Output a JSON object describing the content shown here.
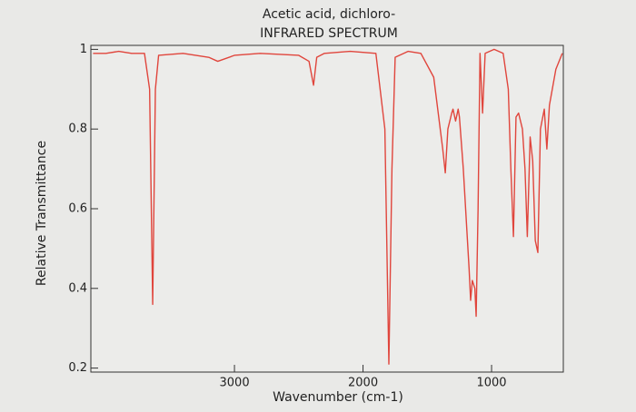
{
  "chart_data": {
    "type": "line",
    "title": "Acetic acid, dichloro-",
    "subtitle": "INFRARED SPECTRUM",
    "x_label": "Wavenumber (cm-1)",
    "y_label": "Relative Transmittance",
    "xlim": [
      4117,
      442
    ],
    "ylim": [
      0.19,
      1.01
    ],
    "xticks": [
      3000,
      2000,
      1000
    ],
    "yticks": [
      0.2,
      0.4,
      0.6,
      0.8,
      1
    ],
    "x": [
      4100,
      4000,
      3900,
      3800,
      3700,
      3660,
      3636,
      3615,
      3590,
      3400,
      3200,
      3130,
      3000,
      2800,
      2500,
      2420,
      2385,
      2360,
      2300,
      2100,
      1900,
      1830,
      1799,
      1775,
      1750,
      1650,
      1550,
      1450,
      1380,
      1360,
      1340,
      1310,
      1300,
      1280,
      1260,
      1250,
      1220,
      1175,
      1163,
      1150,
      1130,
      1120,
      1105,
      1090,
      1070,
      1050,
      980,
      910,
      870,
      850,
      830,
      810,
      790,
      760,
      740,
      722,
      700,
      680,
      660,
      640,
      620,
      590,
      570,
      550,
      500,
      450
    ],
    "series": [
      {
        "name": "Acetic acid, dichloro-",
        "color": "#e0453c",
        "values": [
          0.99,
          0.99,
          0.995,
          0.99,
          0.99,
          0.9,
          0.36,
          0.9,
          0.985,
          0.99,
          0.98,
          0.97,
          0.985,
          0.99,
          0.985,
          0.97,
          0.91,
          0.98,
          0.99,
          0.995,
          0.99,
          0.8,
          0.21,
          0.7,
          0.98,
          0.995,
          0.99,
          0.93,
          0.75,
          0.69,
          0.8,
          0.84,
          0.85,
          0.82,
          0.85,
          0.83,
          0.7,
          0.45,
          0.37,
          0.42,
          0.4,
          0.33,
          0.6,
          0.99,
          0.84,
          0.99,
          1.0,
          0.99,
          0.9,
          0.7,
          0.53,
          0.83,
          0.84,
          0.8,
          0.7,
          0.53,
          0.78,
          0.72,
          0.52,
          0.49,
          0.8,
          0.85,
          0.75,
          0.86,
          0.95,
          0.99
        ]
      }
    ]
  }
}
